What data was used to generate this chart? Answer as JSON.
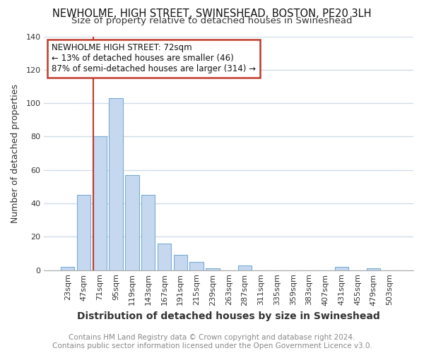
{
  "title": "NEWHOLME, HIGH STREET, SWINESHEAD, BOSTON, PE20 3LH",
  "subtitle": "Size of property relative to detached houses in Swineshead",
  "xlabel": "Distribution of detached houses by size in Swineshead",
  "ylabel": "Number of detached properties",
  "bar_labels": [
    "23sqm",
    "47sqm",
    "71sqm",
    "95sqm",
    "119sqm",
    "143sqm",
    "167sqm",
    "191sqm",
    "215sqm",
    "239sqm",
    "263sqm",
    "287sqm",
    "311sqm",
    "335sqm",
    "359sqm",
    "383sqm",
    "407sqm",
    "431sqm",
    "455sqm",
    "479sqm",
    "503sqm"
  ],
  "bar_values": [
    2,
    45,
    80,
    103,
    57,
    45,
    16,
    9,
    5,
    1,
    0,
    3,
    0,
    0,
    0,
    0,
    0,
    2,
    0,
    1,
    0
  ],
  "bar_color": "#c5d8f0",
  "bar_edge_color": "#7aadd4",
  "annotation_text": "NEWHOLME HIGH STREET: 72sqm\n← 13% of detached houses are smaller (46)\n87% of semi-detached houses are larger (314) →",
  "annotation_box_color": "white",
  "annotation_box_edge_color": "#c0392b",
  "vline_x_index": 2,
  "vline_color": "#c0392b",
  "ylim": [
    0,
    140
  ],
  "yticks": [
    0,
    20,
    40,
    60,
    80,
    100,
    120,
    140
  ],
  "footer_text": "Contains HM Land Registry data © Crown copyright and database right 2024.\nContains public sector information licensed under the Open Government Licence v3.0.",
  "background_color": "#ffffff",
  "plot_background_color": "#ffffff",
  "grid_color": "#d0dce8",
  "title_fontsize": 10.5,
  "subtitle_fontsize": 9.5,
  "xlabel_fontsize": 10,
  "ylabel_fontsize": 9,
  "tick_fontsize": 8,
  "annotation_fontsize": 8.5,
  "footer_fontsize": 7.5
}
